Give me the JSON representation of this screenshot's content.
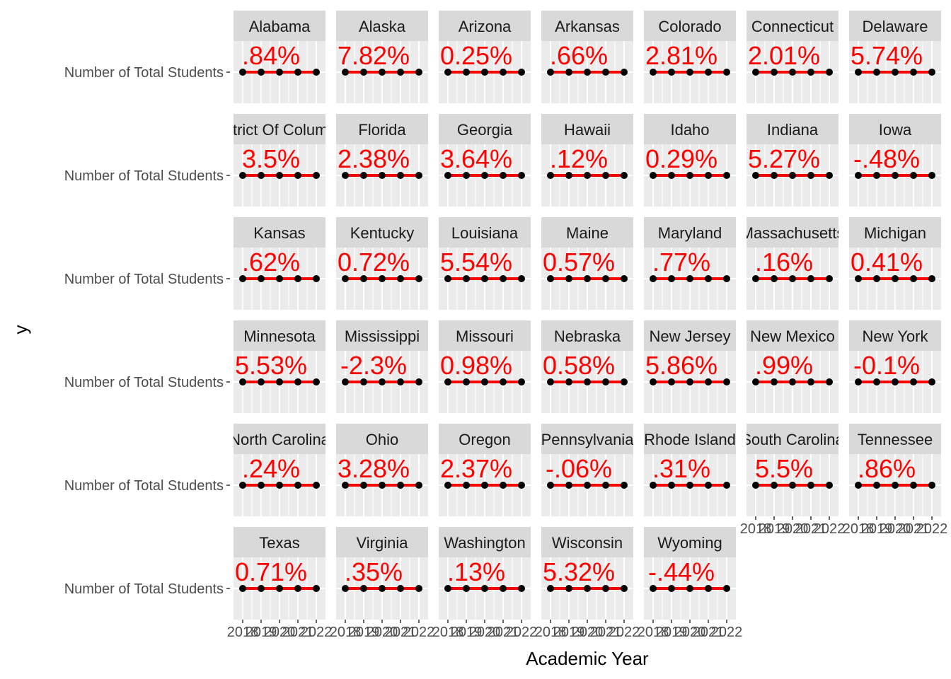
{
  "chart_data": {
    "type": "line",
    "facet_layout": "wrap 7 columns",
    "xlabel": "Academic Year",
    "ylabel": "y",
    "y_category": "Number of Total Students",
    "x_values": [
      2018,
      2019,
      2020,
      2021,
      2022
    ],
    "x_tick_labels": [
      "2018",
      "2019",
      "2020",
      "2021",
      "2022"
    ],
    "panels": [
      {
        "state": "Alabama",
        "label": ".84%"
      },
      {
        "state": "Alaska",
        "label": "7.82%"
      },
      {
        "state": "Arizona",
        "label": "0.25%"
      },
      {
        "state": "Arkansas",
        "label": ".66%"
      },
      {
        "state": "Colorado",
        "label": "2.81%"
      },
      {
        "state": "Connecticut",
        "label": "2.01%"
      },
      {
        "state": "Delaware",
        "label": "5.74%"
      },
      {
        "state": "District Of Columbia",
        "label": "3.5%"
      },
      {
        "state": "Florida",
        "label": "2.38%"
      },
      {
        "state": "Georgia",
        "label": "3.64%"
      },
      {
        "state": "Hawaii",
        "label": ".12%"
      },
      {
        "state": "Idaho",
        "label": "0.29%"
      },
      {
        "state": "Indiana",
        "label": "5.27%"
      },
      {
        "state": "Iowa",
        "label": "-.48%"
      },
      {
        "state": "Kansas",
        "label": ".62%"
      },
      {
        "state": "Kentucky",
        "label": "0.72%"
      },
      {
        "state": "Louisiana",
        "label": "5.54%"
      },
      {
        "state": "Maine",
        "label": "0.57%"
      },
      {
        "state": "Maryland",
        "label": ".77%"
      },
      {
        "state": "Massachusetts",
        "label": ".16%"
      },
      {
        "state": "Michigan",
        "label": "0.41%"
      },
      {
        "state": "Minnesota",
        "label": "5.53%"
      },
      {
        "state": "Mississippi",
        "label": "-2.3%"
      },
      {
        "state": "Missouri",
        "label": "0.98%"
      },
      {
        "state": "Nebraska",
        "label": "0.58%"
      },
      {
        "state": "New Jersey",
        "label": "5.86%"
      },
      {
        "state": "New Mexico",
        "label": ".99%"
      },
      {
        "state": "New York",
        "label": "-0.1%"
      },
      {
        "state": "North Carolina",
        "label": ".24%"
      },
      {
        "state": "Ohio",
        "label": "3.28%"
      },
      {
        "state": "Oregon",
        "label": "2.37%"
      },
      {
        "state": "Pennsylvania",
        "label": "-.06%"
      },
      {
        "state": "Rhode Island",
        "label": ".31%"
      },
      {
        "state": "South Carolina",
        "label": "5.5%"
      },
      {
        "state": "Tennessee",
        "label": ".86%"
      },
      {
        "state": "Texas",
        "label": "0.71%"
      },
      {
        "state": "Virginia",
        "label": ".35%"
      },
      {
        "state": "Washington",
        "label": ".13%"
      },
      {
        "state": "Wisconsin",
        "label": "5.32%"
      },
      {
        "state": "Wyoming",
        "label": "-.44%"
      }
    ],
    "colors": {
      "panel_bg": "#ebebeb",
      "strip_bg": "#d9d9d9",
      "grid": "#ffffff",
      "line": "#ff0000",
      "point": "#000000",
      "label": "#ff0000"
    }
  }
}
